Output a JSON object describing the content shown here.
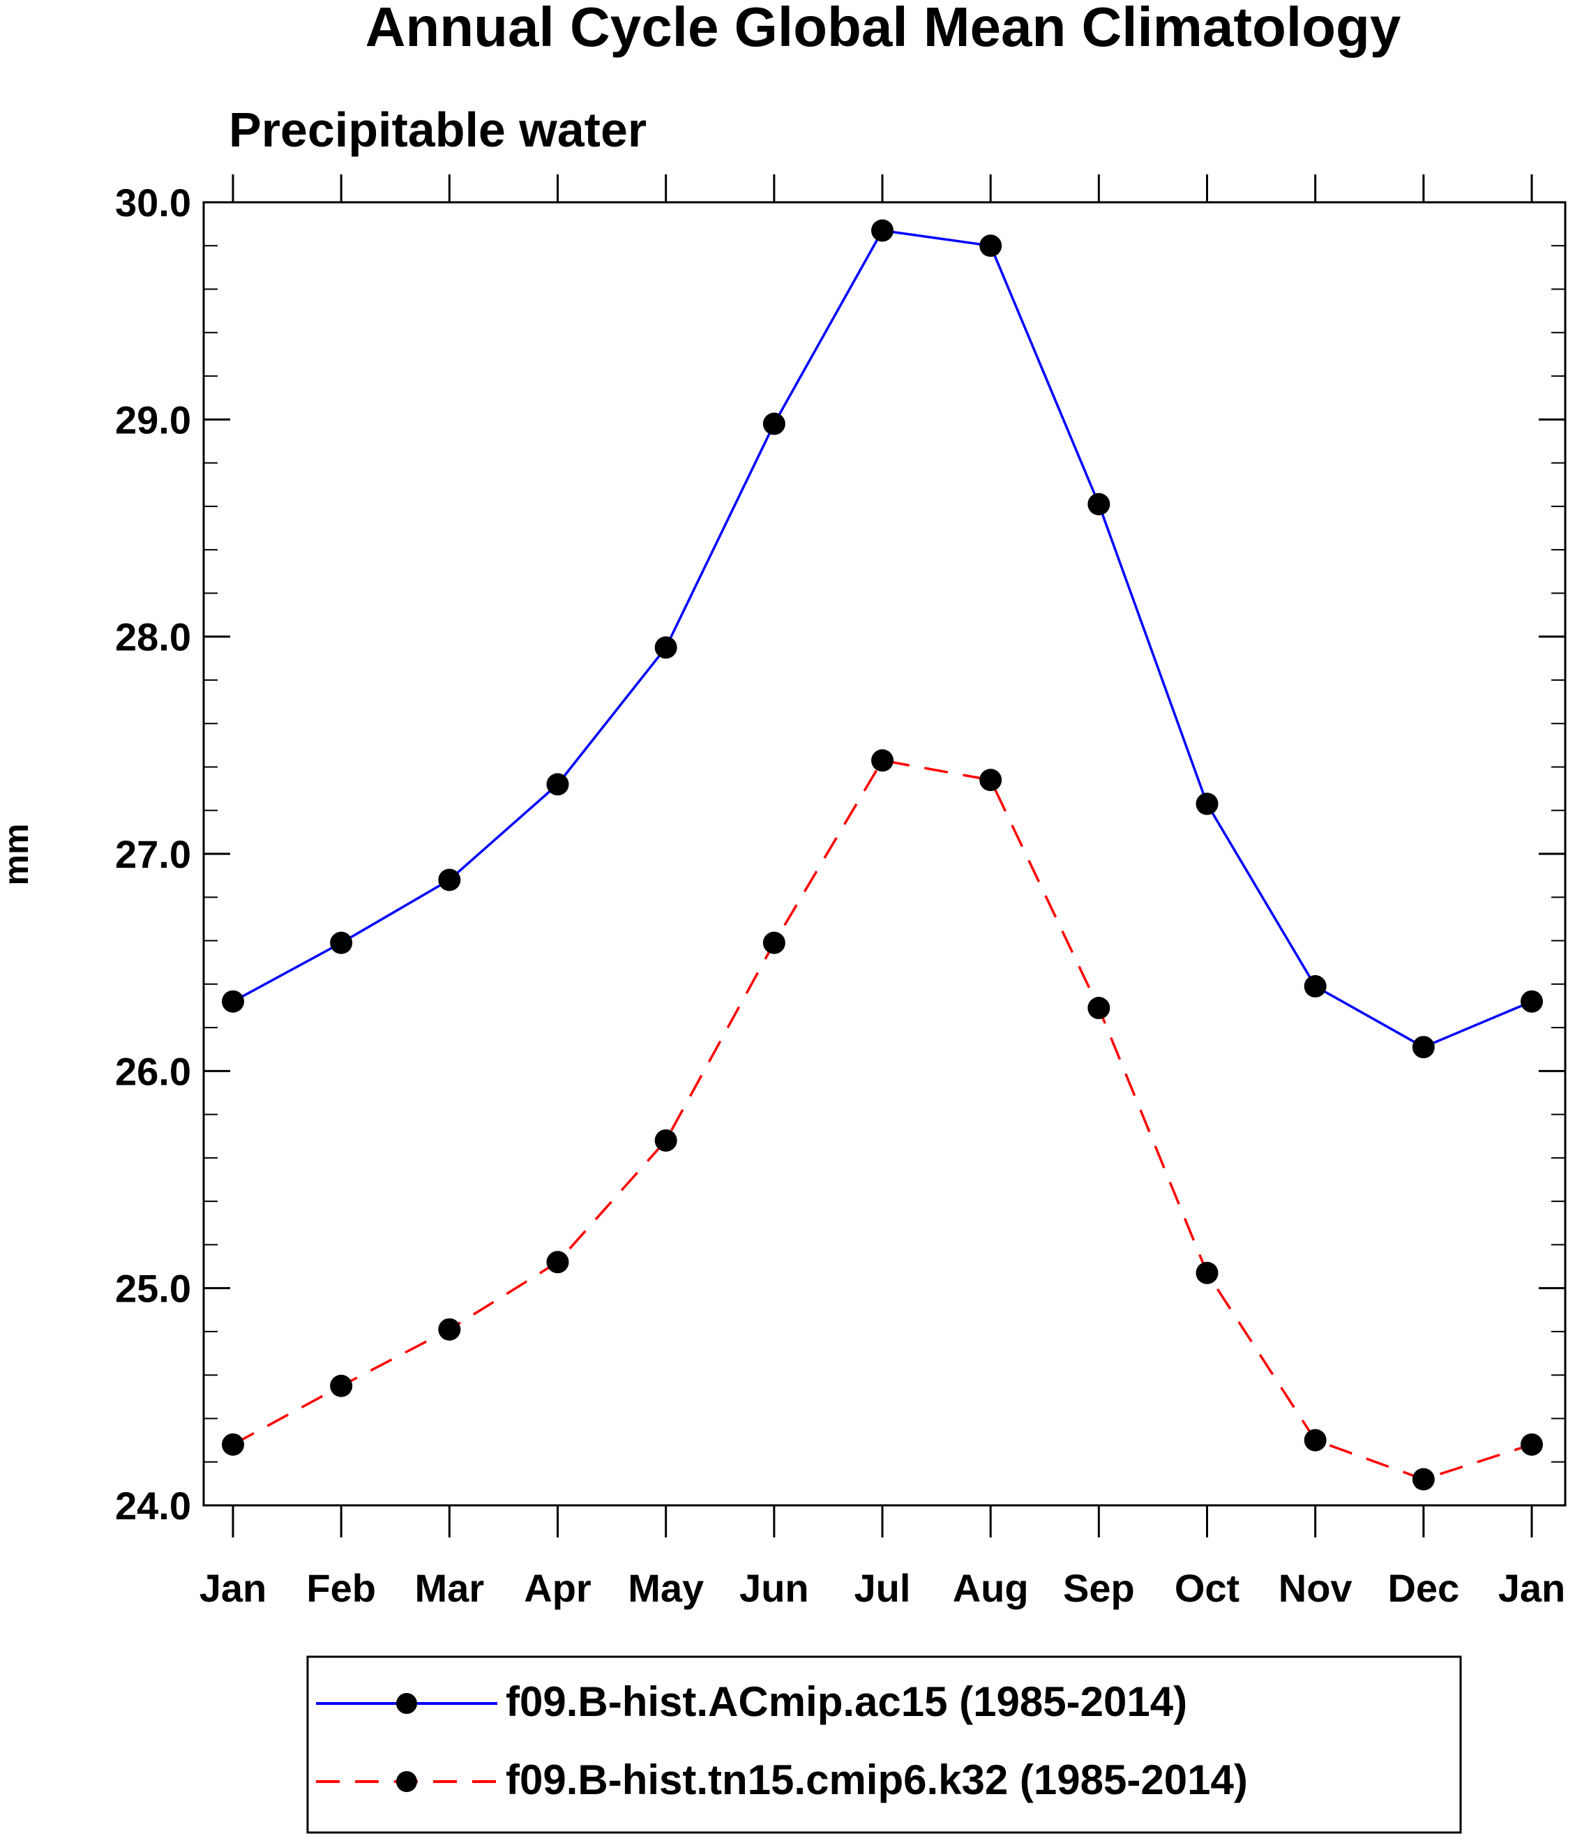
{
  "chart_data": {
    "type": "line",
    "title": "Annual Cycle Global Mean Climatology",
    "subtitle": "Precipitable water",
    "ylabel": "mm",
    "xlabel": "",
    "ylim": [
      24.0,
      30.0
    ],
    "yticks": [
      "24.0",
      "25.0",
      "26.0",
      "27.0",
      "28.0",
      "29.0",
      "30.0"
    ],
    "categories": [
      "Jan",
      "Feb",
      "Mar",
      "Apr",
      "May",
      "Jun",
      "Jul",
      "Aug",
      "Sep",
      "Oct",
      "Nov",
      "Dec",
      "Jan"
    ],
    "series": [
      {
        "name": "f09.B-hist.ACmip.ac15 (1985-2014)",
        "color": "#0000ff",
        "dash": "solid",
        "values": [
          26.32,
          26.59,
          26.88,
          27.32,
          27.95,
          28.98,
          29.87,
          29.8,
          28.61,
          27.23,
          26.39,
          26.11,
          26.32
        ]
      },
      {
        "name": "f09.B-hist.tn15.cmip6.k32 (1985-2014)",
        "color": "#ff0000",
        "dash": "dashed",
        "values": [
          24.28,
          24.55,
          24.81,
          25.12,
          25.68,
          26.59,
          27.43,
          27.34,
          26.29,
          25.07,
          24.3,
          24.12,
          24.28
        ]
      }
    ],
    "legend_position": "bottom"
  }
}
